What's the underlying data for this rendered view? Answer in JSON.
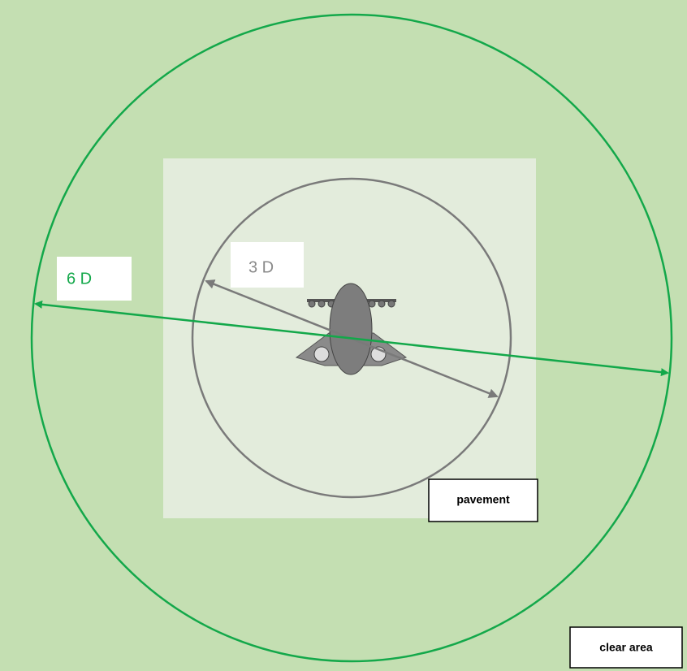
{
  "labels": {
    "outer": "6 D",
    "inner": "3 D",
    "pavement": "pavement",
    "clear_area": "clear area"
  }
}
